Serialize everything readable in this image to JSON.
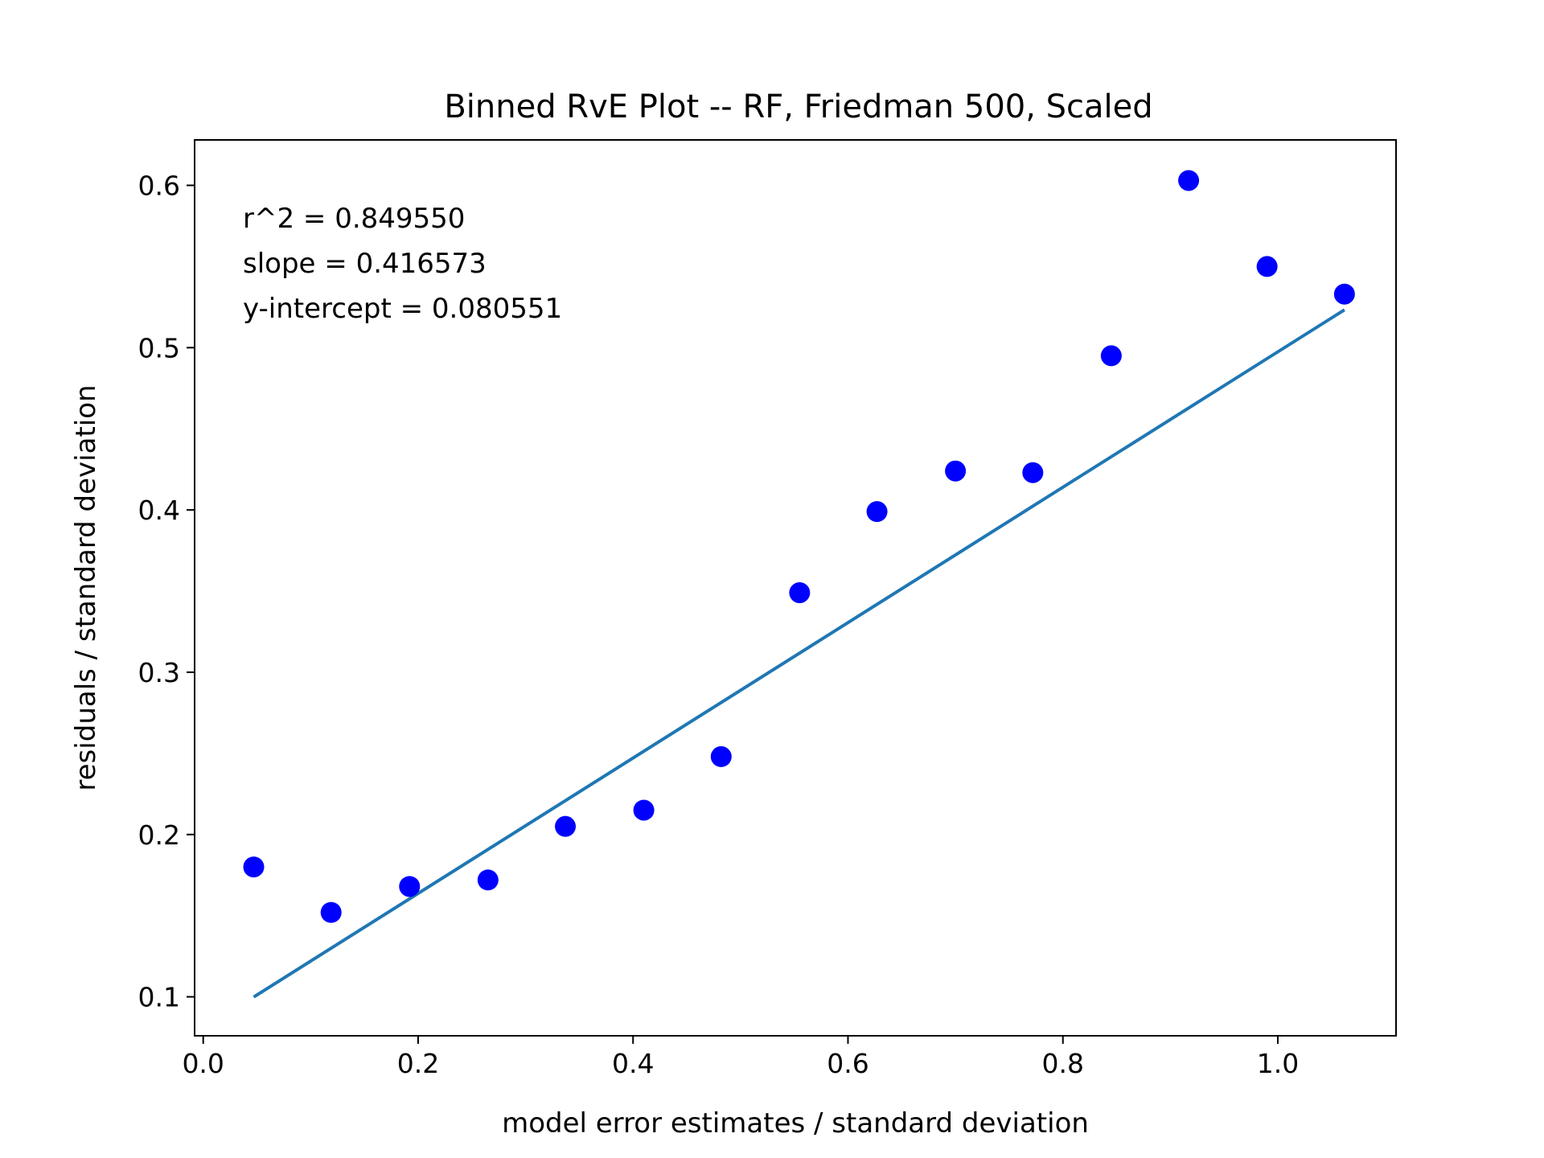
{
  "chart_data": {
    "type": "scatter",
    "title": "Binned RvE Plot -- RF, Friedman 500, Scaled",
    "xlabel": "model error estimates / standard deviation",
    "ylabel": "residuals / standard deviation",
    "xlim": [
      -0.008,
      1.11
    ],
    "ylim": [
      0.076,
      0.628
    ],
    "xticks": [
      0.0,
      0.2,
      0.4,
      0.6,
      0.8,
      1.0
    ],
    "xtick_labels": [
      "0.0",
      "0.2",
      "0.4",
      "0.6",
      "0.8",
      "1.0"
    ],
    "yticks": [
      0.1,
      0.2,
      0.3,
      0.4,
      0.5,
      0.6
    ],
    "ytick_labels": [
      "0.1",
      "0.2",
      "0.3",
      "0.4",
      "0.5",
      "0.6"
    ],
    "grid": false,
    "legend": "none",
    "series": [
      {
        "kind": "scatter",
        "color": "#0000ff",
        "x": [
          0.047,
          0.119,
          0.192,
          0.265,
          0.337,
          0.41,
          0.482,
          0.555,
          0.627,
          0.7,
          0.772,
          0.845,
          0.917,
          0.99,
          1.062
        ],
        "y": [
          0.18,
          0.152,
          0.168,
          0.172,
          0.205,
          0.215,
          0.248,
          0.349,
          0.399,
          0.424,
          0.423,
          0.495,
          0.603,
          0.55,
          0.533
        ]
      },
      {
        "kind": "line",
        "color": "#1f77b4",
        "x": [
          0.047,
          1.062
        ],
        "y": [
          0.0999,
          0.5233
        ]
      }
    ],
    "annotations": [
      "r^2 = 0.849550",
      "slope = 0.416573",
      "y-intercept = 0.080551"
    ]
  }
}
